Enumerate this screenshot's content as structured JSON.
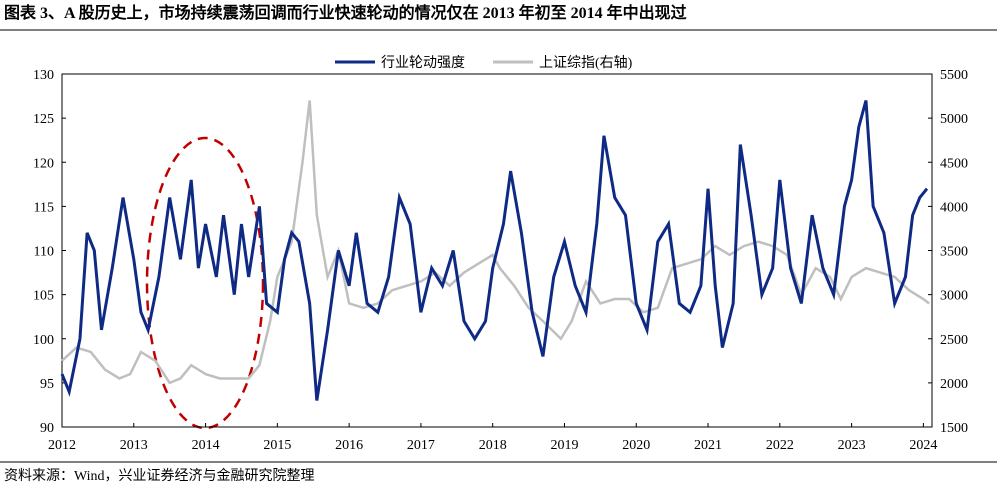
{
  "chart_data": {
    "type": "line",
    "title": "图表 3、A 股历史上，市场持续震荡回调而行业快速轮动的情况仅在 2013 年初至 2014 年中出现过",
    "source": "资料来源：Wind，兴业证券经济与金融研究院整理",
    "xlim": [
      2012,
      2024.12
    ],
    "xticks": [
      2012,
      2013,
      2014,
      2015,
      2016,
      2017,
      2018,
      2019,
      2020,
      2021,
      2022,
      2023,
      2024
    ],
    "ylim": [
      90,
      130
    ],
    "yticks": [
      90,
      95,
      100,
      105,
      110,
      115,
      120,
      125,
      130
    ],
    "y2lim": [
      1500,
      5500
    ],
    "y2ticks": [
      1500,
      2000,
      2500,
      3000,
      3500,
      4000,
      4500,
      5000,
      5500
    ],
    "legend": "top",
    "series": [
      {
        "name": "行业轮动强度",
        "color": "#0e2a84",
        "x": [
          2012.0,
          2012.1,
          2012.25,
          2012.35,
          2012.45,
          2012.55,
          2012.7,
          2012.85,
          2013.0,
          2013.1,
          2013.2,
          2013.35,
          2013.5,
          2013.65,
          2013.8,
          2013.9,
          2014.0,
          2014.15,
          2014.25,
          2014.4,
          2014.5,
          2014.6,
          2014.75,
          2014.85,
          2015.0,
          2015.1,
          2015.2,
          2015.3,
          2015.45,
          2015.55,
          2015.7,
          2015.85,
          2016.0,
          2016.1,
          2016.25,
          2016.4,
          2016.55,
          2016.7,
          2016.85,
          2017.0,
          2017.15,
          2017.3,
          2017.45,
          2017.6,
          2017.75,
          2017.9,
          2018.0,
          2018.15,
          2018.25,
          2018.4,
          2018.55,
          2018.7,
          2018.85,
          2019.0,
          2019.15,
          2019.3,
          2019.45,
          2019.55,
          2019.7,
          2019.85,
          2020.0,
          2020.15,
          2020.3,
          2020.45,
          2020.6,
          2020.75,
          2020.9,
          2021.0,
          2021.1,
          2021.2,
          2021.35,
          2021.45,
          2021.6,
          2021.75,
          2021.9,
          2022.0,
          2022.15,
          2022.3,
          2022.45,
          2022.6,
          2022.75,
          2022.9,
          2023.0,
          2023.1,
          2023.2,
          2023.3,
          2023.45,
          2023.6,
          2023.75,
          2023.85,
          2023.95,
          2024.05
        ],
        "values": [
          96,
          94,
          100,
          112,
          110,
          101,
          108,
          116,
          109,
          103,
          101,
          107,
          116,
          109,
          118,
          108,
          113,
          107,
          114,
          105,
          113,
          107,
          115,
          104,
          103,
          109,
          112,
          111,
          104,
          93,
          101,
          110,
          106,
          112,
          104,
          103,
          107,
          116,
          113,
          103,
          108,
          106,
          110,
          102,
          100,
          102,
          108,
          113,
          119,
          112,
          103,
          98,
          107,
          111,
          106,
          103,
          113,
          123,
          116,
          114,
          104,
          101,
          111,
          113,
          104,
          103,
          106,
          117,
          106,
          99,
          104,
          122,
          114,
          105,
          108,
          118,
          108,
          104,
          114,
          108,
          105,
          115,
          118,
          124,
          127,
          115,
          112,
          104,
          107,
          114,
          116,
          117
        ]
      },
      {
        "name": "上证综指(右轴)",
        "color": "#bfbfbf",
        "axis": "y2",
        "x": [
          2012.0,
          2012.2,
          2012.4,
          2012.6,
          2012.8,
          2012.95,
          2013.1,
          2013.3,
          2013.5,
          2013.65,
          2013.8,
          2014.0,
          2014.2,
          2014.4,
          2014.6,
          2014.75,
          2014.9,
          2015.0,
          2015.2,
          2015.35,
          2015.45,
          2015.55,
          2015.7,
          2015.85,
          2016.0,
          2016.2,
          2016.4,
          2016.6,
          2016.8,
          2017.0,
          2017.2,
          2017.4,
          2017.6,
          2017.8,
          2018.0,
          2018.1,
          2018.3,
          2018.5,
          2018.7,
          2018.95,
          2019.1,
          2019.3,
          2019.5,
          2019.7,
          2019.9,
          2020.1,
          2020.3,
          2020.5,
          2020.7,
          2020.9,
          2021.1,
          2021.3,
          2021.5,
          2021.7,
          2021.9,
          2022.1,
          2022.3,
          2022.5,
          2022.7,
          2022.85,
          2023.0,
          2023.2,
          2023.4,
          2023.6,
          2023.8,
          2024.0,
          2024.08
        ],
        "values": [
          2250,
          2400,
          2350,
          2150,
          2050,
          2100,
          2350,
          2250,
          2000,
          2050,
          2200,
          2100,
          2050,
          2050,
          2050,
          2200,
          2700,
          3200,
          3600,
          4500,
          5200,
          3900,
          3200,
          3500,
          2900,
          2850,
          2900,
          3050,
          3100,
          3150,
          3250,
          3100,
          3250,
          3350,
          3450,
          3300,
          3100,
          2850,
          2700,
          2500,
          2700,
          3150,
          2900,
          2950,
          2950,
          2800,
          2850,
          3300,
          3350,
          3400,
          3550,
          3450,
          3550,
          3600,
          3550,
          3450,
          3000,
          3300,
          3200,
          2950,
          3200,
          3300,
          3250,
          3200,
          3050,
          2950,
          2900
        ]
      }
    ]
  }
}
